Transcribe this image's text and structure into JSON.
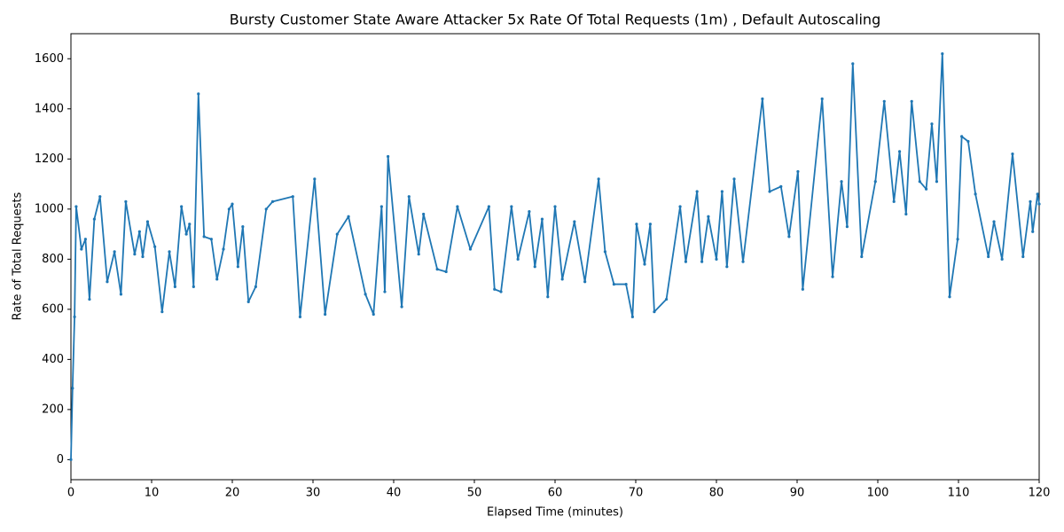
{
  "chart_data": {
    "type": "line",
    "title": "Bursty Customer State Aware Attacker 5x Rate Of Total Requests (1m) , Default Autoscaling",
    "x_label": "Elapsed Time (minutes)",
    "y_label": "Rate of Total Requests",
    "x": [
      0,
      0.2,
      0.45,
      0.65,
      1.3,
      1.8,
      2.3,
      2.9,
      3.6,
      4.5,
      5.4,
      6.2,
      6.8,
      7.9,
      8.5,
      8.9,
      9.5,
      10.4,
      11.3,
      12.2,
      12.9,
      13.7,
      14.3,
      14.7,
      15.2,
      15.8,
      16.5,
      17.4,
      18.1,
      18.9,
      19.6,
      20,
      20.7,
      21.3,
      22,
      22.9,
      24.2,
      25,
      27.5,
      28.4,
      30.2,
      31.5,
      33,
      34.4,
      36.5,
      37.5,
      38.5,
      38.9,
      39.3,
      41,
      41.9,
      43.1,
      43.7,
      45.4,
      46.5,
      47.9,
      49.5,
      51.8,
      52.5,
      53.3,
      54.6,
      55.4,
      56.8,
      57.5,
      58.4,
      59.1,
      60,
      60.9,
      62.4,
      63.7,
      65.4,
      66.2,
      67.3,
      68.8,
      69.6,
      70.1,
      71.1,
      71.8,
      72.3,
      73.8,
      75.5,
      76.2,
      77.6,
      78.2,
      79,
      80,
      80.7,
      81.3,
      82.2,
      83.3,
      85.7,
      86.6,
      88,
      89,
      90.1,
      90.7,
      93.1,
      94.4,
      95.5,
      96.2,
      96.9,
      98,
      99.7,
      100.8,
      102,
      102.7,
      103.5,
      104.2,
      105.2,
      106,
      106.7,
      107.3,
      108,
      108.9,
      109.9,
      110.4,
      111.2,
      112.1,
      113.7,
      114.4,
      115.4,
      116.7,
      118,
      118.9,
      119.2,
      119.8,
      120
    ],
    "series": [
      {
        "name": "Rate of Total Requests",
        "color": "#1f77b4",
        "values": [
          0,
          285,
          570,
          1010,
          840,
          880,
          640,
          960,
          1050,
          710,
          830,
          660,
          1030,
          820,
          910,
          810,
          950,
          850,
          590,
          830,
          690,
          1010,
          900,
          940,
          690,
          1460,
          890,
          880,
          720,
          840,
          1000,
          1020,
          770,
          930,
          630,
          690,
          1000,
          1030,
          1050,
          570,
          1120,
          580,
          900,
          970,
          660,
          580,
          1010,
          670,
          1210,
          610,
          1050,
          820,
          980,
          760,
          750,
          1010,
          840,
          1010,
          680,
          670,
          1010,
          800,
          990,
          770,
          960,
          650,
          1010,
          720,
          950,
          710,
          1120,
          830,
          700,
          700,
          570,
          940,
          780,
          940,
          590,
          640,
          1010,
          790,
          1070,
          790,
          970,
          800,
          1070,
          770,
          1120,
          790,
          1440,
          1070,
          1090,
          890,
          1150,
          680,
          1440,
          730,
          1110,
          930,
          1580,
          810,
          1110,
          1430,
          1030,
          1230,
          980,
          1430,
          1110,
          1080,
          1340,
          1110,
          1620,
          650,
          880,
          1290,
          1270,
          1060,
          810,
          950,
          800,
          1220,
          810,
          1030,
          910,
          1060,
          1020
        ]
      }
    ],
    "xlim": [
      0,
      120
    ],
    "ylim": [
      -80,
      1700
    ],
    "xticks": [
      0,
      10,
      20,
      30,
      40,
      50,
      60,
      70,
      80,
      90,
      100,
      110,
      120
    ],
    "yticks": [
      0,
      200,
      400,
      600,
      800,
      1000,
      1200,
      1400,
      1600
    ],
    "grid": false
  }
}
